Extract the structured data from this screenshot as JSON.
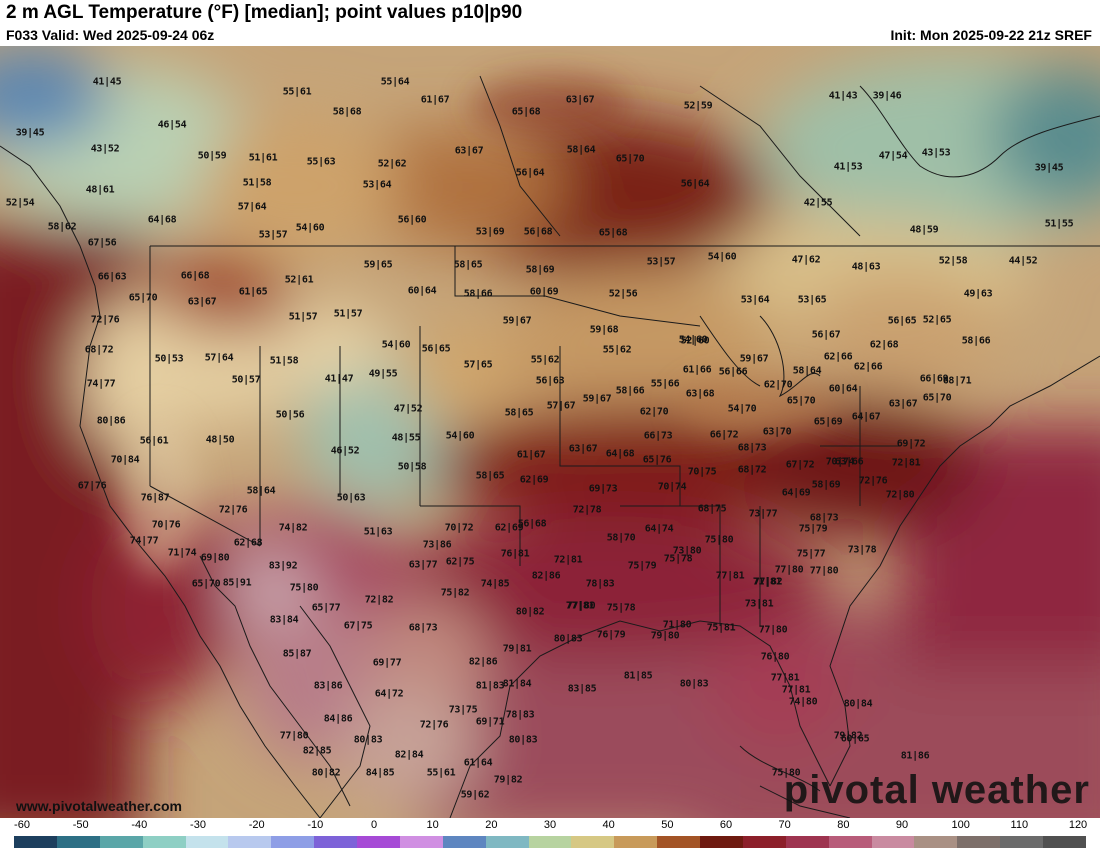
{
  "header": {
    "title": "2 m AGL Temperature (°F) [median]; point values p10|p90",
    "valid": "F033 Valid: Wed 2025-09-24 06z",
    "init": "Init: Mon 2025-09-22 21z SREF"
  },
  "watermark": "pivotal weather",
  "website": "www.pivotalweather.com",
  "colorbar": {
    "ticks": [
      "-60",
      "-50",
      "-40",
      "-30",
      "-20",
      "-10",
      "0",
      "10",
      "20",
      "30",
      "40",
      "50",
      "60",
      "70",
      "80",
      "90",
      "100",
      "110",
      "120"
    ],
    "colors": [
      "#1d3f5e",
      "#2d6f85",
      "#5aa6a8",
      "#8ecfc4",
      "#c4e2ec",
      "#b8c9ee",
      "#8e9ee6",
      "#7d62d8",
      "#a64ad6",
      "#d08fe2",
      "#5e86c0",
      "#7fb8c2",
      "#b7d3a0",
      "#d6c884",
      "#c89a5a",
      "#a35426",
      "#6e1a10",
      "#8c1f2a",
      "#9e3450",
      "#b85c7a",
      "#c98aa0",
      "#a99084",
      "#7d6f6a",
      "#6b6b6b",
      "#505050"
    ]
  },
  "points": [
    {
      "label": "41|45"
    },
    {
      "label": "39|45"
    },
    {
      "label": "43|52"
    },
    {
      "label": "46|54"
    },
    {
      "label": "48|61"
    },
    {
      "label": "52|54"
    },
    {
      "label": "58|62"
    },
    {
      "label": "67|56"
    },
    {
      "label": "55|61"
    },
    {
      "label": "55|64"
    },
    {
      "label": "58|68"
    },
    {
      "label": "61|67"
    },
    {
      "label": "63|67"
    },
    {
      "label": "52|59"
    },
    {
      "label": "65|68"
    },
    {
      "label": "41|43"
    },
    {
      "label": "39|46"
    },
    {
      "label": "50|59"
    },
    {
      "label": "51|61"
    },
    {
      "label": "55|63"
    },
    {
      "label": "52|62"
    },
    {
      "label": "63|67"
    },
    {
      "label": "58|64"
    },
    {
      "label": "65|70"
    },
    {
      "label": "47|54"
    },
    {
      "label": "43|53"
    },
    {
      "label": "51|58"
    },
    {
      "label": "53|64"
    },
    {
      "label": "56|64"
    },
    {
      "label": "56|64"
    },
    {
      "label": "41|53"
    },
    {
      "label": "39|45"
    },
    {
      "label": "57|64"
    },
    {
      "label": "64|68"
    },
    {
      "label": "56|60"
    },
    {
      "label": "42|55"
    },
    {
      "label": "53|57"
    },
    {
      "label": "54|60"
    },
    {
      "label": "53|69"
    },
    {
      "label": "56|68"
    },
    {
      "label": "65|68"
    },
    {
      "label": "48|59"
    },
    {
      "label": "51|55"
    },
    {
      "label": "66|63"
    },
    {
      "label": "66|68"
    },
    {
      "label": "59|65"
    },
    {
      "label": "58|65"
    },
    {
      "label": "53|57"
    },
    {
      "label": "54|60"
    },
    {
      "label": "47|62"
    },
    {
      "label": "48|63"
    },
    {
      "label": "52|58"
    },
    {
      "label": "44|52"
    },
    {
      "label": "52|61"
    },
    {
      "label": "58|69"
    },
    {
      "label": "65|70"
    },
    {
      "label": "63|67"
    },
    {
      "label": "61|65"
    },
    {
      "label": "60|64"
    },
    {
      "label": "58|66"
    },
    {
      "label": "60|69"
    },
    {
      "label": "52|56"
    },
    {
      "label": "53|64"
    },
    {
      "label": "53|65"
    },
    {
      "label": "49|63"
    },
    {
      "label": "72|76"
    },
    {
      "label": "51|57"
    },
    {
      "label": "51|57"
    },
    {
      "label": "59|67"
    },
    {
      "label": "56|65"
    },
    {
      "label": "52|65"
    },
    {
      "label": "54|60"
    },
    {
      "label": "59|68"
    },
    {
      "label": "68|72"
    },
    {
      "label": "54|60"
    },
    {
      "label": "56|65"
    },
    {
      "label": "55|62"
    },
    {
      "label": "52|60"
    },
    {
      "label": "56|67"
    },
    {
      "label": "58|66"
    },
    {
      "label": "62|66"
    },
    {
      "label": "62|68"
    },
    {
      "label": "50|53"
    },
    {
      "label": "57|64"
    },
    {
      "label": "51|58"
    },
    {
      "label": "41|47"
    },
    {
      "label": "49|55"
    },
    {
      "label": "57|65"
    },
    {
      "label": "55|62"
    },
    {
      "label": "59|67"
    },
    {
      "label": "61|66"
    },
    {
      "label": "56|66"
    },
    {
      "label": "62|66"
    },
    {
      "label": "58|64"
    },
    {
      "label": "66|69"
    },
    {
      "label": "74|77"
    },
    {
      "label": "50|57"
    },
    {
      "label": "56|63"
    },
    {
      "label": "55|66"
    },
    {
      "label": "58|66"
    },
    {
      "label": "62|70"
    },
    {
      "label": "60|64"
    },
    {
      "label": "68|71"
    },
    {
      "label": "50|56"
    },
    {
      "label": "47|52"
    },
    {
      "label": "58|65"
    },
    {
      "label": "57|67"
    },
    {
      "label": "63|68"
    },
    {
      "label": "59|67"
    },
    {
      "label": "54|70"
    },
    {
      "label": "65|70"
    },
    {
      "label": "63|67"
    },
    {
      "label": "65|70"
    },
    {
      "label": "80|86"
    },
    {
      "label": "56|61"
    },
    {
      "label": "48|50"
    },
    {
      "label": "48|55"
    },
    {
      "label": "54|60"
    },
    {
      "label": "62|70"
    },
    {
      "label": "64|67"
    },
    {
      "label": "69|72"
    },
    {
      "label": "66|73"
    },
    {
      "label": "66|72"
    },
    {
      "label": "63|70"
    },
    {
      "label": "65|69"
    },
    {
      "label": "46|52"
    },
    {
      "label": "61|67"
    },
    {
      "label": "63|67"
    },
    {
      "label": "64|68"
    },
    {
      "label": "68|73"
    },
    {
      "label": "70|74"
    },
    {
      "label": "70|84"
    },
    {
      "label": "50|58"
    },
    {
      "label": "58|65"
    },
    {
      "label": "62|69"
    },
    {
      "label": "65|76"
    },
    {
      "label": "70|75"
    },
    {
      "label": "68|72"
    },
    {
      "label": "67|72"
    },
    {
      "label": "63|66"
    },
    {
      "label": "72|81"
    },
    {
      "label": "67|76"
    },
    {
      "label": "58|64"
    },
    {
      "label": "69|73"
    },
    {
      "label": "70|74"
    },
    {
      "label": "64|69"
    },
    {
      "label": "72|76"
    },
    {
      "label": "76|87"
    },
    {
      "label": "50|63"
    },
    {
      "label": "72|76"
    },
    {
      "label": "72|78"
    },
    {
      "label": "62|69"
    },
    {
      "label": "70|72"
    },
    {
      "label": "72|80"
    },
    {
      "label": "58|69"
    },
    {
      "label": "68|75"
    },
    {
      "label": "73|77"
    },
    {
      "label": "68|73"
    },
    {
      "label": "70|76"
    },
    {
      "label": "74|82"
    },
    {
      "label": "51|63"
    },
    {
      "label": "56|68"
    },
    {
      "label": "64|74"
    },
    {
      "label": "75|79"
    },
    {
      "label": "74|77"
    },
    {
      "label": "62|68"
    },
    {
      "label": "73|86"
    },
    {
      "label": "58|70"
    },
    {
      "label": "73|80"
    },
    {
      "label": "75|80"
    },
    {
      "label": "75|77"
    },
    {
      "label": "73|78"
    },
    {
      "label": "71|74"
    },
    {
      "label": "69|80"
    },
    {
      "label": "76|81"
    },
    {
      "label": "72|81"
    },
    {
      "label": "77|81"
    },
    {
      "label": "77|80"
    },
    {
      "label": "77|80"
    },
    {
      "label": "83|92"
    },
    {
      "label": "63|77"
    },
    {
      "label": "62|75"
    },
    {
      "label": "75|79"
    },
    {
      "label": "75|78"
    },
    {
      "label": "65|70"
    },
    {
      "label": "85|91"
    },
    {
      "label": "82|86"
    },
    {
      "label": "74|85"
    },
    {
      "label": "78|83"
    },
    {
      "label": "77|82"
    },
    {
      "label": "75|80"
    },
    {
      "label": "75|82"
    },
    {
      "label": "71|81"
    },
    {
      "label": "77|81"
    },
    {
      "label": "72|82"
    },
    {
      "label": "65|77"
    },
    {
      "label": "73|81"
    },
    {
      "label": "83|84"
    },
    {
      "label": "80|82"
    },
    {
      "label": "77|80"
    },
    {
      "label": "75|78"
    },
    {
      "label": "67|75"
    },
    {
      "label": "68|73"
    },
    {
      "label": "71|80"
    },
    {
      "label": "75|81"
    },
    {
      "label": "77|80"
    },
    {
      "label": "80|83"
    },
    {
      "label": "76|79"
    },
    {
      "label": "79|80"
    },
    {
      "label": "79|81"
    },
    {
      "label": "85|87"
    },
    {
      "label": "76|80"
    },
    {
      "label": "69|77"
    },
    {
      "label": "82|86"
    },
    {
      "label": "83|86"
    },
    {
      "label": "81|83"
    },
    {
      "label": "81|84"
    },
    {
      "label": "83|85"
    },
    {
      "label": "81|85"
    },
    {
      "label": "80|83"
    },
    {
      "label": "77|81"
    },
    {
      "label": "77|81"
    },
    {
      "label": "64|72"
    },
    {
      "label": "73|75"
    },
    {
      "label": "74|80"
    },
    {
      "label": "80|84"
    },
    {
      "label": "84|86"
    },
    {
      "label": "80|83"
    },
    {
      "label": "78|83"
    },
    {
      "label": "72|76"
    },
    {
      "label": "69|71"
    },
    {
      "label": "77|80"
    },
    {
      "label": "80|83"
    },
    {
      "label": "79|82"
    },
    {
      "label": "82|85"
    },
    {
      "label": "82|84"
    },
    {
      "label": "60|65"
    },
    {
      "label": "81|86"
    },
    {
      "label": "84|85"
    },
    {
      "label": "55|61"
    },
    {
      "label": "61|64"
    },
    {
      "label": "80|82"
    },
    {
      "label": "75|80"
    },
    {
      "label": "79|82"
    },
    {
      "label": "59|62"
    }
  ]
}
